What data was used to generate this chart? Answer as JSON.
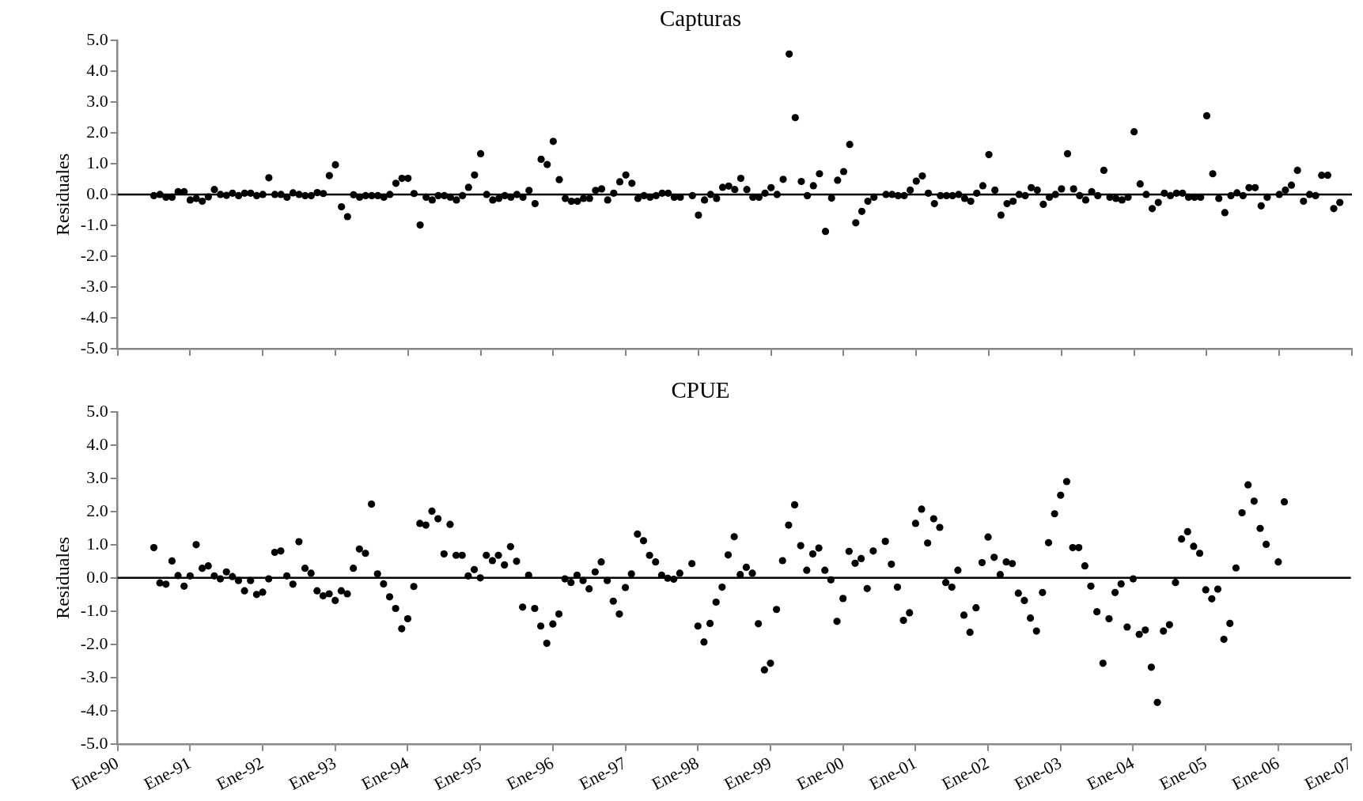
{
  "chart_data": [
    {
      "type": "scatter",
      "title": "Capturas",
      "ylabel": "Residuales",
      "marker": "circle",
      "tick_labels": "y",
      "xlim": [
        "1990-01",
        "2007-01"
      ],
      "xticks": [
        {
          "value": "1990-01",
          "label": null
        },
        {
          "value": "1991-01",
          "label": null
        },
        {
          "value": "1992-01",
          "label": null
        },
        {
          "value": "1993-01",
          "label": null
        },
        {
          "value": "1994-01",
          "label": null
        },
        {
          "value": "1995-01",
          "label": null
        },
        {
          "value": "1996-01",
          "label": null
        },
        {
          "value": "1997-01",
          "label": null
        },
        {
          "value": "1998-01",
          "label": null
        },
        {
          "value": "1999-01",
          "label": null
        },
        {
          "value": "2000-01",
          "label": null
        },
        {
          "value": "2001-01",
          "label": null
        },
        {
          "value": "2002-01",
          "label": null
        },
        {
          "value": "2003-01",
          "label": null
        },
        {
          "value": "2004-01",
          "label": null
        },
        {
          "value": "2005-01",
          "label": null
        },
        {
          "value": "2006-01",
          "label": null
        },
        {
          "value": "2007-01",
          "label": null
        }
      ],
      "ylim": [
        -5,
        5
      ],
      "yticks": [
        {
          "value": -5,
          "label": "-5.0"
        },
        {
          "value": -4,
          "label": "-4.0"
        },
        {
          "value": -3,
          "label": "-3.0"
        },
        {
          "value": -2,
          "label": "-2.0"
        },
        {
          "value": -1,
          "label": "-1.0"
        },
        {
          "value": 0,
          "label": "0.0"
        },
        {
          "value": 1,
          "label": "1.0"
        },
        {
          "value": 2,
          "label": "2.0"
        },
        {
          "value": 3,
          "label": "3.0"
        },
        {
          "value": 4,
          "label": "4.0"
        },
        {
          "value": 5,
          "label": "5.0"
        }
      ],
      "ref_lines": [
        {
          "axis": "y",
          "value": 0,
          "color": "#000000"
        }
      ],
      "x": [
        "1990-07",
        "1990-08",
        "1990-09",
        "1990-10",
        "1990-11",
        "1990-12",
        "1991-01",
        "1991-02",
        "1991-03",
        "1991-04",
        "1991-05",
        "1991-06",
        "1991-07",
        "1991-08",
        "1991-09",
        "1991-10",
        "1991-11",
        "1991-12",
        "1992-01",
        "1992-02",
        "1992-03",
        "1992-04",
        "1992-05",
        "1992-06",
        "1992-07",
        "1992-08",
        "1992-09",
        "1992-10",
        "1992-11",
        "1992-12",
        "1993-01",
        "1993-02",
        "1993-03",
        "1993-04",
        "1993-05",
        "1993-06",
        "1993-07",
        "1993-08",
        "1993-09",
        "1993-10",
        "1993-11",
        "1993-12",
        "1994-01",
        "1994-02",
        "1994-03",
        "1994-04",
        "1994-05",
        "1994-06",
        "1994-07",
        "1994-08",
        "1994-09",
        "1994-10",
        "1994-11",
        "1994-12",
        "1995-01",
        "1995-02",
        "1995-03",
        "1995-04",
        "1995-05",
        "1995-06",
        "1995-07",
        "1995-08",
        "1995-09",
        "1995-10",
        "1995-11",
        "1995-12",
        "1996-01",
        "1996-02",
        "1996-03",
        "1996-04",
        "1996-05",
        "1996-06",
        "1996-07",
        "1996-08",
        "1996-09",
        "1996-10",
        "1996-11",
        "1996-12",
        "1997-01",
        "1997-02",
        "1997-03",
        "1997-04",
        "1997-05",
        "1997-06",
        "1997-07",
        "1997-08",
        "1997-09",
        "1997-10",
        "1997-11",
        "1997-12",
        "1998-01",
        "1998-02",
        "1998-03",
        "1998-04",
        "1998-05",
        "1998-06",
        "1998-07",
        "1998-08",
        "1998-09",
        "1998-10",
        "1998-11",
        "1998-12",
        "1999-01",
        "1999-02",
        "1999-03",
        "1999-04",
        "1999-05",
        "1999-06",
        "1999-07",
        "1999-08",
        "1999-09",
        "1999-10",
        "1999-11",
        "1999-12",
        "2000-01",
        "2000-02",
        "2000-03",
        "2000-04",
        "2000-05",
        "2000-06",
        "2000-07",
        "2000-08",
        "2000-09",
        "2000-10",
        "2000-11",
        "2000-12",
        "2001-01",
        "2001-02",
        "2001-03",
        "2001-04",
        "2001-05",
        "2001-06",
        "2001-07",
        "2001-08",
        "2001-09",
        "2001-10",
        "2001-11",
        "2001-12",
        "2002-01",
        "2002-02",
        "2002-03",
        "2002-04",
        "2002-05",
        "2002-06",
        "2002-07",
        "2002-08",
        "2002-09",
        "2002-10",
        "2002-11",
        "2002-12",
        "2003-01",
        "2003-02",
        "2003-03",
        "2003-04",
        "2003-05",
        "2003-06",
        "2003-07",
        "2003-08",
        "2003-09",
        "2003-10",
        "2003-11",
        "2003-12",
        "2004-01",
        "2004-02",
        "2004-03",
        "2004-04",
        "2004-05",
        "2004-06",
        "2004-07",
        "2004-08",
        "2004-09",
        "2004-10",
        "2004-11",
        "2004-12",
        "2005-01",
        "2005-02",
        "2005-03",
        "2005-04",
        "2005-05",
        "2005-06",
        "2005-07",
        "2005-08",
        "2005-09",
        "2005-10",
        "2005-11",
        "2005-12",
        "2006-01",
        "2006-02",
        "2006-03",
        "2006-04",
        "2006-05",
        "2006-06",
        "2006-07",
        "2006-08",
        "2006-09",
        "2006-10",
        "2006-11"
      ],
      "series": [
        {
          "color": "#000000",
          "values": [
            -0.04,
            0,
            -0.09,
            -0.09,
            0.09,
            0.09,
            -0.18,
            -0.13,
            -0.22,
            -0.08,
            0.16,
            0,
            -0.03,
            0.04,
            -0.04,
            0.04,
            0.04,
            -0.04,
            0,
            0.54,
            0,
            0,
            -0.09,
            0.05,
            0,
            -0.04,
            -0.04,
            0.06,
            0.03,
            0.61,
            0.96,
            -0.4,
            -0.72,
            -0.01,
            -0.09,
            -0.04,
            -0.04,
            -0.04,
            -0.09,
            0,
            0.36,
            0.52,
            0.52,
            0.03,
            -0.99,
            -0.09,
            -0.18,
            -0.04,
            -0.04,
            -0.09,
            -0.18,
            -0.04,
            0.23,
            0.63,
            1.32,
            0,
            -0.18,
            -0.13,
            -0.04,
            -0.09,
            0,
            -0.09,
            0.13,
            -0.3,
            1.14,
            0.97,
            1.72,
            0.48,
            -0.13,
            -0.22,
            -0.22,
            -0.13,
            -0.13,
            0.13,
            0.18,
            -0.18,
            0.04,
            0.41,
            0.63,
            0.36,
            -0.13,
            -0.04,
            -0.09,
            -0.04,
            0.04,
            0.04,
            -0.09,
            -0.09,
            null,
            -0.04,
            -0.67,
            -0.18,
            0,
            -0.13,
            0.23,
            0.27,
            0.16,
            0.52,
            0.16,
            -0.09,
            -0.09,
            0.04,
            0.22,
            0,
            0.49,
            4.55,
            2.49,
            0.42,
            -0.04,
            0.28,
            0.67,
            -1.2,
            -0.12,
            0.46,
            0.74,
            1.62,
            -0.92,
            -0.55,
            -0.22,
            -0.09,
            null,
            0,
            0,
            -0.04,
            -0.04,
            0.14,
            0.43,
            0.6,
            0.04,
            -0.3,
            -0.04,
            -0.04,
            -0.04,
            0,
            -0.13,
            -0.22,
            0.04,
            0.28,
            1.29,
            0.14,
            -0.67,
            -0.3,
            -0.22,
            0,
            -0.04,
            0.22,
            0.14,
            -0.32,
            -0.09,
            0,
            0.18,
            1.32,
            0.18,
            -0.04,
            -0.18,
            0.09,
            -0.04,
            0.78,
            -0.09,
            -0.13,
            -0.18,
            -0.09,
            2.03,
            0.34,
            0,
            -0.46,
            -0.26,
            0.04,
            -0.04,
            0.04,
            0.04,
            -0.09,
            -0.09,
            -0.09,
            2.55,
            0.67,
            -0.13,
            -0.59,
            -0.04,
            0.05,
            -0.04,
            0.22,
            0.22,
            -0.37,
            -0.09,
            null,
            0,
            0.14,
            0.3,
            0.78,
            -0.22,
            0,
            -0.04,
            0.62,
            0.62,
            -0.46,
            -0.26
          ]
        }
      ]
    },
    {
      "type": "scatter",
      "title": "CPUE",
      "ylabel": "Residuales",
      "marker": "circle",
      "xlim": [
        "1990-01",
        "2007-01"
      ],
      "xticks": [
        {
          "value": "1990-01",
          "label": "Ene-90"
        },
        {
          "value": "1991-01",
          "label": "Ene-91"
        },
        {
          "value": "1992-01",
          "label": "Ene-92"
        },
        {
          "value": "1993-01",
          "label": "Ene-93"
        },
        {
          "value": "1994-01",
          "label": "Ene-94"
        },
        {
          "value": "1995-01",
          "label": "Ene-95"
        },
        {
          "value": "1996-01",
          "label": "Ene-96"
        },
        {
          "value": "1997-01",
          "label": "Ene-97"
        },
        {
          "value": "1998-01",
          "label": "Ene-98"
        },
        {
          "value": "1999-01",
          "label": "Ene-99"
        },
        {
          "value": "2000-01",
          "label": "Ene-00"
        },
        {
          "value": "2001-01",
          "label": "Ene-01"
        },
        {
          "value": "2002-01",
          "label": "Ene-02"
        },
        {
          "value": "2003-01",
          "label": "Ene-03"
        },
        {
          "value": "2004-01",
          "label": "Ene-04"
        },
        {
          "value": "2005-01",
          "label": "Ene-05"
        },
        {
          "value": "2006-01",
          "label": "Ene-06"
        },
        {
          "value": "2007-01",
          "label": "Ene-07"
        }
      ],
      "ylim": [
        -5,
        5
      ],
      "yticks": [
        {
          "value": -5,
          "label": "-5.0"
        },
        {
          "value": -4,
          "label": "-4.0"
        },
        {
          "value": -3,
          "label": "-3.0"
        },
        {
          "value": -2,
          "label": "-2.0"
        },
        {
          "value": -1,
          "label": "-1.0"
        },
        {
          "value": 0,
          "label": "0.0"
        },
        {
          "value": 1,
          "label": "1.0"
        },
        {
          "value": 2,
          "label": "2.0"
        },
        {
          "value": 3,
          "label": "3.0"
        },
        {
          "value": 4,
          "label": "4.0"
        },
        {
          "value": 5,
          "label": "5.0"
        }
      ],
      "ref_lines": [
        {
          "axis": "y",
          "value": 0,
          "color": "#000000"
        }
      ],
      "x": [
        "1990-07",
        "1990-08",
        "1990-09",
        "1990-10",
        "1990-11",
        "1990-12",
        "1991-01",
        "1991-02",
        "1991-03",
        "1991-04",
        "1991-05",
        "1991-06",
        "1991-07",
        "1991-08",
        "1991-09",
        "1991-10",
        "1991-11",
        "1991-12",
        "1992-01",
        "1992-02",
        "1992-03",
        "1992-04",
        "1992-05",
        "1992-06",
        "1992-07",
        "1992-08",
        "1992-09",
        "1992-10",
        "1992-11",
        "1992-12",
        "1993-01",
        "1993-02",
        "1993-03",
        "1993-04",
        "1993-05",
        "1993-06",
        "1993-07",
        "1993-08",
        "1993-09",
        "1993-10",
        "1993-11",
        "1993-12",
        "1994-01",
        "1994-02",
        "1994-03",
        "1994-04",
        "1994-05",
        "1994-06",
        "1994-07",
        "1994-08",
        "1994-09",
        "1994-10",
        "1994-11",
        "1994-12",
        "1995-01",
        "1995-02",
        "1995-03",
        "1995-04",
        "1995-05",
        "1995-06",
        "1995-07",
        "1995-08",
        "1995-09",
        "1995-10",
        "1995-11",
        "1995-12",
        "1996-01",
        "1996-02",
        "1996-03",
        "1996-04",
        "1996-05",
        "1996-06",
        "1996-07",
        "1996-08",
        "1996-09",
        "1996-10",
        "1996-11",
        "1996-12",
        "1997-01",
        "1997-02",
        "1997-03",
        "1997-04",
        "1997-05",
        "1997-06",
        "1997-07",
        "1997-08",
        "1997-09",
        "1997-10",
        "1997-11",
        "1997-12",
        "1998-01",
        "1998-02",
        "1998-03",
        "1998-04",
        "1998-05",
        "1998-06",
        "1998-07",
        "1998-08",
        "1998-09",
        "1998-10",
        "1998-11",
        "1998-12",
        "1999-01",
        "1999-02",
        "1999-03",
        "1999-04",
        "1999-05",
        "1999-06",
        "1999-07",
        "1999-08",
        "1999-09",
        "1999-10",
        "1999-11",
        "1999-12",
        "2000-01",
        "2000-02",
        "2000-03",
        "2000-04",
        "2000-05",
        "2000-06",
        "2000-07",
        "2000-08",
        "2000-09",
        "2000-10",
        "2000-11",
        "2000-12",
        "2001-01",
        "2001-02",
        "2001-03",
        "2001-04",
        "2001-05",
        "2001-06",
        "2001-07",
        "2001-08",
        "2001-09",
        "2001-10",
        "2001-11",
        "2001-12",
        "2002-01",
        "2002-02",
        "2002-03",
        "2002-04",
        "2002-05",
        "2002-06",
        "2002-07",
        "2002-08",
        "2002-09",
        "2002-10",
        "2002-11",
        "2002-12",
        "2003-01",
        "2003-02",
        "2003-03",
        "2003-04",
        "2003-05",
        "2003-06",
        "2003-07",
        "2003-08",
        "2003-09",
        "2003-10",
        "2003-11",
        "2003-12",
        "2004-01",
        "2004-02",
        "2004-03",
        "2004-04",
        "2004-05",
        "2004-06",
        "2004-07",
        "2004-08",
        "2004-09",
        "2004-10",
        "2004-11",
        "2004-12",
        "2005-01",
        "2005-02",
        "2005-03",
        "2005-04",
        "2005-05",
        "2005-06",
        "2005-07",
        "2005-08",
        "2005-09",
        "2005-10",
        "2005-11",
        "2005-12",
        "2006-01",
        "2006-02"
      ],
      "series": [
        {
          "color": "#000000",
          "values": [
            0.91,
            -0.15,
            -0.19,
            0.51,
            0.07,
            -0.25,
            0.06,
            1.0,
            0.29,
            0.36,
            0.06,
            -0.03,
            0.18,
            0.04,
            -0.08,
            -0.39,
            -0.08,
            -0.5,
            -0.43,
            -0.03,
            0.77,
            0.81,
            0.06,
            -0.19,
            1.09,
            0.29,
            0.14,
            -0.39,
            -0.54,
            -0.48,
            -0.68,
            -0.39,
            -0.48,
            0.29,
            0.87,
            0.74,
            2.22,
            0.12,
            -0.18,
            -0.57,
            -0.92,
            -1.53,
            -1.23,
            -0.26,
            1.64,
            1.59,
            2.01,
            1.78,
            0.72,
            1.61,
            0.68,
            0.68,
            0.06,
            0.25,
            0,
            0.68,
            0.52,
            0.68,
            0.39,
            0.94,
            0.5,
            -0.88,
            0.08,
            -0.92,
            -1.45,
            -1.97,
            -1.39,
            -1.09,
            -0.03,
            -0.14,
            0.08,
            -0.08,
            -0.33,
            0.18,
            0.48,
            -0.08,
            -0.7,
            -1.09,
            -0.29,
            0.12,
            1.32,
            1.12,
            0.68,
            0.48,
            0.08,
            -0.01,
            -0.04,
            0.14,
            null,
            0.43,
            -1.45,
            -1.93,
            -1.37,
            -0.73,
            -0.28,
            0.69,
            1.24,
            0.1,
            0.32,
            0.14,
            -1.38,
            -2.77,
            -2.57,
            -0.95,
            0.52,
            1.59,
            2.2,
            0.97,
            0.23,
            0.72,
            0.9,
            0.23,
            -0.06,
            -1.31,
            -0.62,
            0.8,
            0.44,
            0.58,
            -0.32,
            0.81,
            null,
            1.1,
            0.41,
            -0.28,
            -1.28,
            -1.05,
            1.64,
            2.07,
            1.05,
            1.78,
            1.52,
            -0.14,
            -0.28,
            0.23,
            -1.12,
            -1.64,
            -0.9,
            0.46,
            1.23,
            0.62,
            0.1,
            0.48,
            0.43,
            -0.46,
            -0.68,
            -1.21,
            -1.6,
            -0.44,
            1.06,
            1.93,
            2.49,
            2.9,
            0.91,
            0.91,
            0.36,
            -0.25,
            -1.02,
            -2.57,
            -1.23,
            -0.44,
            -0.18,
            -1.48,
            -0.03,
            -1.7,
            -1.57,
            -2.69,
            -3.75,
            -1.6,
            -1.41,
            -0.14,
            1.17,
            1.39,
            0.95,
            0.74,
            -0.36,
            -0.63,
            -0.34,
            -1.85,
            -1.37,
            0.3,
            1.96,
            2.8,
            2.31,
            1.49,
            1.01,
            null,
            0.48,
            2.29
          ]
        }
      ]
    }
  ]
}
